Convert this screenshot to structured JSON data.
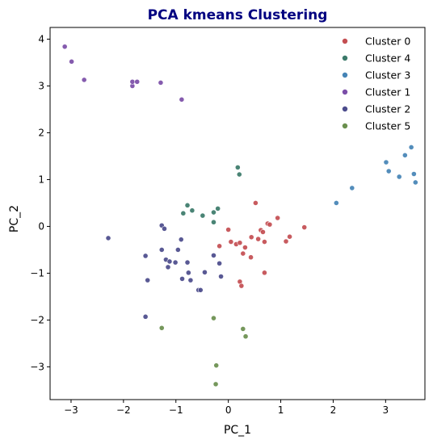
{
  "chart_data": {
    "type": "scatter",
    "title": "PCA kmeans Clustering",
    "title_color": "#000080",
    "xlabel": "PC_1",
    "ylabel": "PC_2",
    "xlim": [
      -3.4,
      3.75
    ],
    "ylim": [
      -3.7,
      4.25
    ],
    "xticks": [
      -3,
      -2,
      -1,
      0,
      1,
      2,
      3
    ],
    "yticks": [
      -3,
      -2,
      -1,
      0,
      1,
      2,
      3,
      4
    ],
    "grid": false,
    "legend_position": "top-right",
    "series": [
      {
        "name": "Cluster 0",
        "color": "#c44e52",
        "points": [
          [
            0.0,
            -0.07
          ],
          [
            -0.17,
            -0.42
          ],
          [
            0.05,
            -0.33
          ],
          [
            0.15,
            -0.38
          ],
          [
            0.22,
            -0.35
          ],
          [
            0.32,
            -0.45
          ],
          [
            0.28,
            -0.58
          ],
          [
            0.43,
            -0.66
          ],
          [
            0.44,
            -0.23
          ],
          [
            0.52,
            0.5
          ],
          [
            0.57,
            -0.27
          ],
          [
            0.62,
            -0.08
          ],
          [
            0.66,
            -0.12
          ],
          [
            0.69,
            -0.33
          ],
          [
            0.75,
            0.06
          ],
          [
            0.79,
            0.04
          ],
          [
            0.94,
            0.18
          ],
          [
            1.1,
            -0.32
          ],
          [
            1.17,
            -0.22
          ],
          [
            1.45,
            -0.02
          ],
          [
            0.22,
            -1.18
          ],
          [
            0.25,
            -1.27
          ],
          [
            0.69,
            -0.99
          ]
        ]
      },
      {
        "name": "Cluster 4",
        "color": "#3b7a6a",
        "points": [
          [
            0.18,
            1.26
          ],
          [
            0.21,
            1.11
          ],
          [
            -0.2,
            0.38
          ],
          [
            -0.28,
            0.3
          ],
          [
            -0.28,
            0.09
          ],
          [
            -0.49,
            0.23
          ],
          [
            -0.69,
            0.34
          ],
          [
            -0.78,
            0.45
          ],
          [
            -0.86,
            0.28
          ]
        ]
      },
      {
        "name": "Cluster 3",
        "color": "#4584b6",
        "points": [
          [
            2.06,
            0.5
          ],
          [
            2.36,
            0.82
          ],
          [
            3.01,
            1.37
          ],
          [
            3.06,
            1.18
          ],
          [
            3.26,
            1.06
          ],
          [
            3.37,
            1.52
          ],
          [
            3.49,
            1.69
          ],
          [
            3.54,
            1.12
          ],
          [
            3.57,
            0.94
          ]
        ]
      },
      {
        "name": "Cluster 1",
        "color": "#7b4ea8",
        "points": [
          [
            -3.12,
            3.84
          ],
          [
            -2.99,
            3.52
          ],
          [
            -2.75,
            3.13
          ],
          [
            -1.83,
            3.0
          ],
          [
            -1.83,
            3.09
          ],
          [
            -1.74,
            3.09
          ],
          [
            -1.29,
            3.07
          ],
          [
            -0.89,
            2.71
          ]
        ]
      },
      {
        "name": "Cluster 2",
        "color": "#4c4c8c",
        "points": [
          [
            -2.29,
            -0.25
          ],
          [
            -1.58,
            -0.63
          ],
          [
            -1.54,
            -1.15
          ],
          [
            -1.58,
            -1.93
          ],
          [
            -1.27,
            0.02
          ],
          [
            -1.22,
            -0.05
          ],
          [
            -1.27,
            -0.5
          ],
          [
            -1.19,
            -0.71
          ],
          [
            -1.15,
            -0.87
          ],
          [
            -1.12,
            -0.75
          ],
          [
            -1.01,
            -0.77
          ],
          [
            -0.96,
            -0.5
          ],
          [
            -0.9,
            -0.28
          ],
          [
            -0.88,
            -1.12
          ],
          [
            -0.78,
            -0.77
          ],
          [
            -0.76,
            -0.99
          ],
          [
            -0.72,
            -1.15
          ],
          [
            -0.57,
            -1.36
          ],
          [
            -0.53,
            -1.36
          ],
          [
            -0.45,
            -0.98
          ],
          [
            -0.28,
            -0.62
          ],
          [
            -0.17,
            -0.79
          ],
          [
            -0.14,
            -1.07
          ]
        ]
      },
      {
        "name": "Cluster 5",
        "color": "#6a8f4e",
        "points": [
          [
            -1.27,
            -2.17
          ],
          [
            -0.28,
            -1.96
          ],
          [
            0.28,
            -2.19
          ],
          [
            0.33,
            -2.35
          ],
          [
            -0.23,
            -2.97
          ],
          [
            -0.24,
            -3.37
          ]
        ]
      }
    ]
  }
}
